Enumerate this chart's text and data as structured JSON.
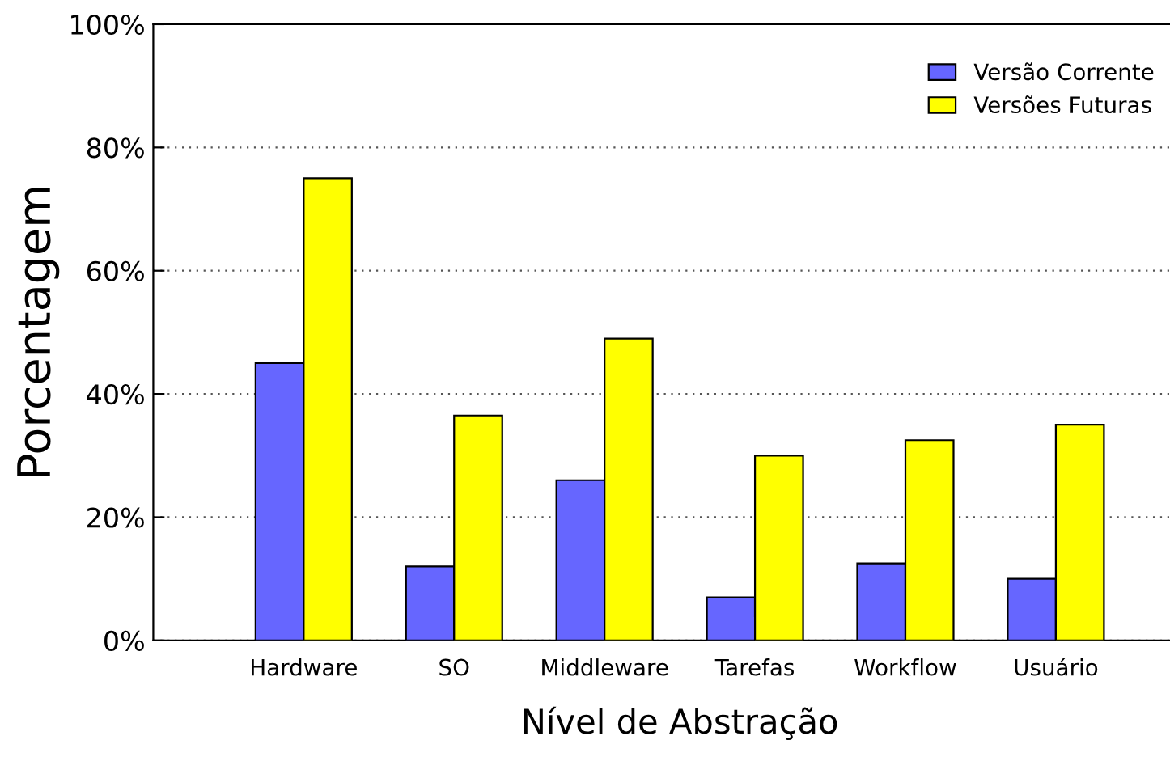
{
  "chart_data": {
    "type": "bar",
    "xlabel": "Nível de Abstração",
    "ylabel": "Porcentagem",
    "categories": [
      "Hardware",
      "SO",
      "Middleware",
      "Tarefas",
      "Workflow",
      "Usuário"
    ],
    "series": [
      {
        "name": "Versão Corrente",
        "color": "#6666ff",
        "values": [
          45,
          12,
          26,
          7,
          12.5,
          10
        ]
      },
      {
        "name": "Versões Futuras",
        "color": "#ffff00",
        "values": [
          75,
          36.5,
          49,
          30,
          32.5,
          35
        ]
      }
    ],
    "ylim": [
      0,
      100
    ],
    "yticks": [
      {
        "value": 0,
        "label": "0%"
      },
      {
        "value": 20,
        "label": "20%"
      },
      {
        "value": 40,
        "label": "40%"
      },
      {
        "value": 60,
        "label": "60%"
      },
      {
        "value": 80,
        "label": "80%"
      },
      {
        "value": 100,
        "label": "100%"
      }
    ],
    "grid": "y",
    "legend": "top right"
  }
}
